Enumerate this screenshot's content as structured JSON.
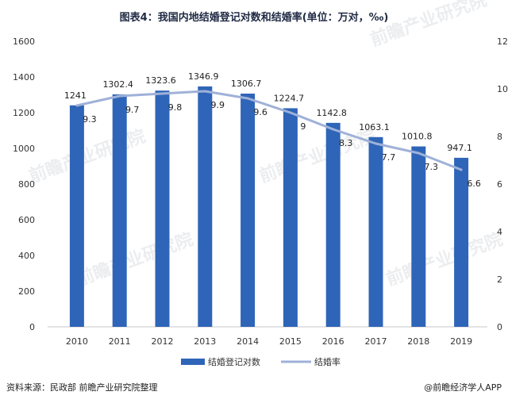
{
  "chart_data": {
    "type": "bar+line",
    "title": "图表4：我国内地结婚登记对数和结婚率(单位：万对，‰)",
    "categories": [
      "2010",
      "2011",
      "2012",
      "2013",
      "2014",
      "2015",
      "2016",
      "2017",
      "2018",
      "2019"
    ],
    "series": [
      {
        "name": "结婚登记对数",
        "type": "bar",
        "axis": "left",
        "values": [
          1241,
          1302.4,
          1323.6,
          1346.9,
          1306.7,
          1224.7,
          1142.8,
          1063.1,
          1010.8,
          947.1
        ],
        "labels": [
          "1241",
          "1302.4",
          "1323.6",
          "1346.9",
          "1306.7",
          "1224.7",
          "1142.8",
          "1063.1",
          "1010.8",
          "947.1"
        ]
      },
      {
        "name": "结婚率",
        "type": "line",
        "axis": "right",
        "values": [
          9.3,
          9.7,
          9.8,
          9.9,
          9.6,
          9,
          8.3,
          7.7,
          7.3,
          6.6
        ],
        "labels": [
          "9.3",
          "9.7",
          "9.8",
          "9.9",
          "9.6",
          "9",
          "8.3",
          "7.7",
          "7.3",
          "6.6"
        ]
      }
    ],
    "left_axis": {
      "min": 0,
      "max": 1600,
      "ticks": [
        "0",
        "200",
        "400",
        "600",
        "800",
        "1000",
        "1200",
        "1400",
        "1600"
      ]
    },
    "right_axis": {
      "min": 0,
      "max": 12,
      "ticks": [
        "0",
        "2",
        "4",
        "6",
        "8",
        "10",
        "12"
      ]
    },
    "legend_position": "bottom-center"
  },
  "footer": {
    "source": "资料来源：民政部 前瞻产业研究院整理",
    "brand": "@前瞻经济学人APP"
  },
  "watermark": "前瞻产业研究院",
  "colors": {
    "bar": "#2f65b8",
    "line": "#9fb1d8",
    "axis": "#c9c9c9",
    "title": "#1f2a44"
  }
}
